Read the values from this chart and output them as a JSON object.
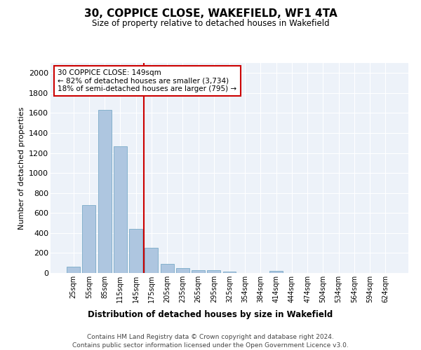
{
  "title": "30, COPPICE CLOSE, WAKEFIELD, WF1 4TA",
  "subtitle": "Size of property relative to detached houses in Wakefield",
  "xlabel": "Distribution of detached houses by size in Wakefield",
  "ylabel": "Number of detached properties",
  "categories": [
    "25sqm",
    "55sqm",
    "85sqm",
    "115sqm",
    "145sqm",
    "175sqm",
    "205sqm",
    "235sqm",
    "265sqm",
    "295sqm",
    "325sqm",
    "354sqm",
    "384sqm",
    "414sqm",
    "444sqm",
    "474sqm",
    "504sqm",
    "534sqm",
    "564sqm",
    "594sqm",
    "624sqm"
  ],
  "values": [
    60,
    680,
    1630,
    1270,
    440,
    250,
    90,
    50,
    30,
    25,
    15,
    0,
    0,
    20,
    0,
    0,
    0,
    0,
    0,
    0,
    0
  ],
  "bar_color": "#aec6e0",
  "bar_edge_color": "#7aaac8",
  "vline_index": 4,
  "vline_color": "#cc0000",
  "annotation_text": "30 COPPICE CLOSE: 149sqm\n← 82% of detached houses are smaller (3,734)\n18% of semi-detached houses are larger (795) →",
  "annotation_box_color": "#ffffff",
  "annotation_box_edge": "#cc0000",
  "ylim": [
    0,
    2100
  ],
  "yticks": [
    0,
    200,
    400,
    600,
    800,
    1000,
    1200,
    1400,
    1600,
    1800,
    2000
  ],
  "background_color": "#edf2f9",
  "footer_line1": "Contains HM Land Registry data © Crown copyright and database right 2024.",
  "footer_line2": "Contains public sector information licensed under the Open Government Licence v3.0."
}
